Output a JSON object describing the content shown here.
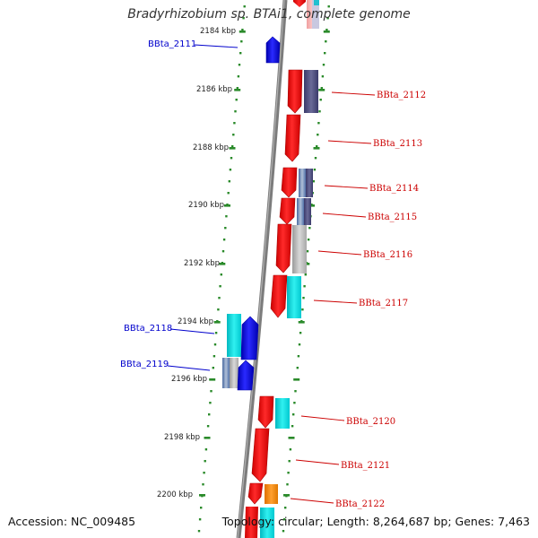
{
  "title": "Bradyrhizobium sp. BTAi1, complete genome",
  "footer": {
    "accession": "Accession: NC_009485",
    "summary": "Topology: circular; Length: 8,264,687 bp; Genes: 7,463"
  },
  "colors": {
    "backbone": "#888888",
    "tick": "#2a8a2a",
    "forward_gene": "#ee0000",
    "reverse_gene": "#0000ee",
    "left_label": "#0000cc",
    "right_label": "#cc0000",
    "cyan": "#00e0e0",
    "slate": "#55557a",
    "gray": "#b8b8b8",
    "orange": "#ff8800"
  },
  "ticks": [
    {
      "label": "2184 kbp"
    },
    {
      "label": "2186 kbp"
    },
    {
      "label": "2188 kbp"
    },
    {
      "label": "2190 kbp"
    },
    {
      "label": "2192 kbp"
    },
    {
      "label": "2194 kbp"
    },
    {
      "label": "2196 kbp"
    },
    {
      "label": "2198 kbp"
    },
    {
      "label": "2200 kbp"
    }
  ],
  "left_genes": [
    {
      "label": "BBta_2111"
    },
    {
      "label": "BBta_2118"
    },
    {
      "label": "BBta_2119"
    }
  ],
  "right_genes": [
    {
      "label": "BBta_2112"
    },
    {
      "label": "BBta_2113"
    },
    {
      "label": "BBta_2114"
    },
    {
      "label": "BBta_2115"
    },
    {
      "label": "BBta_2116"
    },
    {
      "label": "BBta_2117"
    },
    {
      "label": "BBta_2120"
    },
    {
      "label": "BBta_2121"
    },
    {
      "label": "BBta_2122"
    }
  ]
}
